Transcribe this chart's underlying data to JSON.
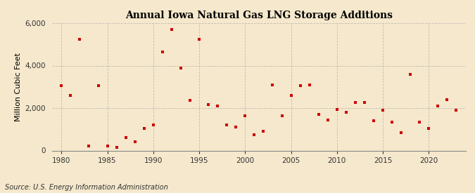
{
  "title": "Annual Iowa Natural Gas LNG Storage Additions",
  "ylabel": "Million Cubic Feet",
  "source": "Source: U.S. Energy Information Administration",
  "xlim": [
    1979,
    2024
  ],
  "ylim": [
    0,
    6000
  ],
  "yticks": [
    0,
    2000,
    4000,
    6000
  ],
  "ytick_labels": [
    "0",
    "2,000",
    "4,000",
    "6,000"
  ],
  "xticks": [
    1980,
    1985,
    1990,
    1995,
    2000,
    2005,
    2010,
    2015,
    2020
  ],
  "background_color": "#f5e8cc",
  "marker_color": "#cc0000",
  "years": [
    1980,
    1981,
    1982,
    1983,
    1984,
    1985,
    1986,
    1987,
    1988,
    1989,
    1990,
    1991,
    1992,
    1993,
    1994,
    1995,
    1996,
    1997,
    1998,
    1999,
    2000,
    2001,
    2002,
    2003,
    2004,
    2005,
    2006,
    2007,
    2008,
    2009,
    2010,
    2011,
    2012,
    2013,
    2014,
    2015,
    2016,
    2017,
    2018,
    2019,
    2020,
    2021,
    2022,
    2023
  ],
  "values": [
    3050,
    2600,
    5250,
    200,
    3050,
    200,
    150,
    620,
    400,
    1050,
    1200,
    4650,
    5700,
    3900,
    2350,
    5250,
    2150,
    2100,
    1200,
    1100,
    1650,
    750,
    900,
    3100,
    1650,
    2600,
    3050,
    3100,
    1700,
    1450,
    1950,
    1800,
    2250,
    2250,
    1400,
    1900,
    1350,
    850,
    3600,
    1350,
    1050,
    2100,
    2400,
    1900
  ]
}
